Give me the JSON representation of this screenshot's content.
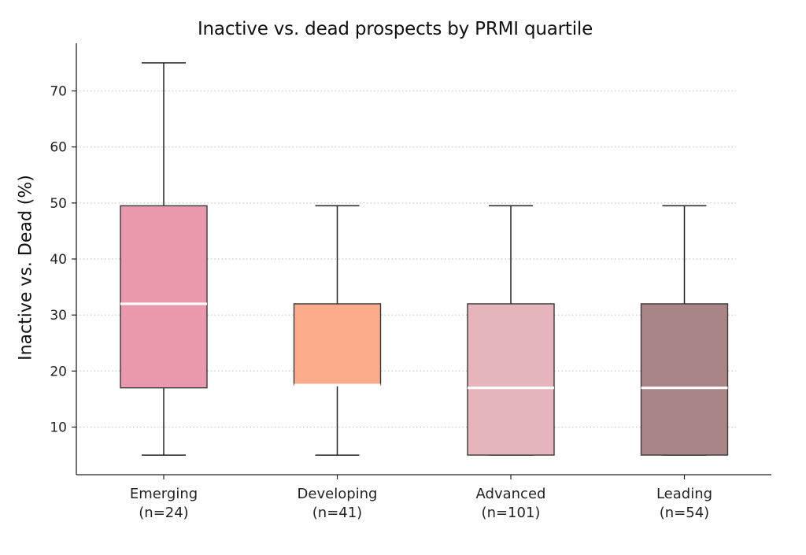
{
  "chart_data": {
    "type": "box",
    "title": "Inactive vs. dead prospects by PRMI quartile",
    "xlabel": "",
    "ylabel": "Inactive vs. Dead (%)",
    "ylim": [
      1.5,
      78.5
    ],
    "yticks": [
      10,
      20,
      30,
      40,
      50,
      60,
      70
    ],
    "grid": "horizontal dotted",
    "categories": [
      {
        "label": "Emerging",
        "n_label": "(n=24)",
        "whisker_low": 5,
        "q1": 17,
        "median": 32,
        "q3": 49.5,
        "whisker_high": 75,
        "color": "#e899ab"
      },
      {
        "label": "Developing",
        "n_label": "(n=41)",
        "whisker_low": 5,
        "q1": 17.5,
        "median": 17.5,
        "q3": 32,
        "whisker_high": 49.5,
        "color": "#fdac8b"
      },
      {
        "label": "Advanced",
        "n_label": "(n=101)",
        "whisker_low": 5,
        "q1": 5,
        "median": 17,
        "q3": 32,
        "whisker_high": 49.5,
        "color": "#e6b5bc"
      },
      {
        "label": "Leading",
        "n_label": "(n=54)",
        "whisker_low": 5,
        "q1": 5,
        "median": 17,
        "q3": 32,
        "whisker_high": 49.5,
        "color": "#a98588"
      }
    ]
  }
}
